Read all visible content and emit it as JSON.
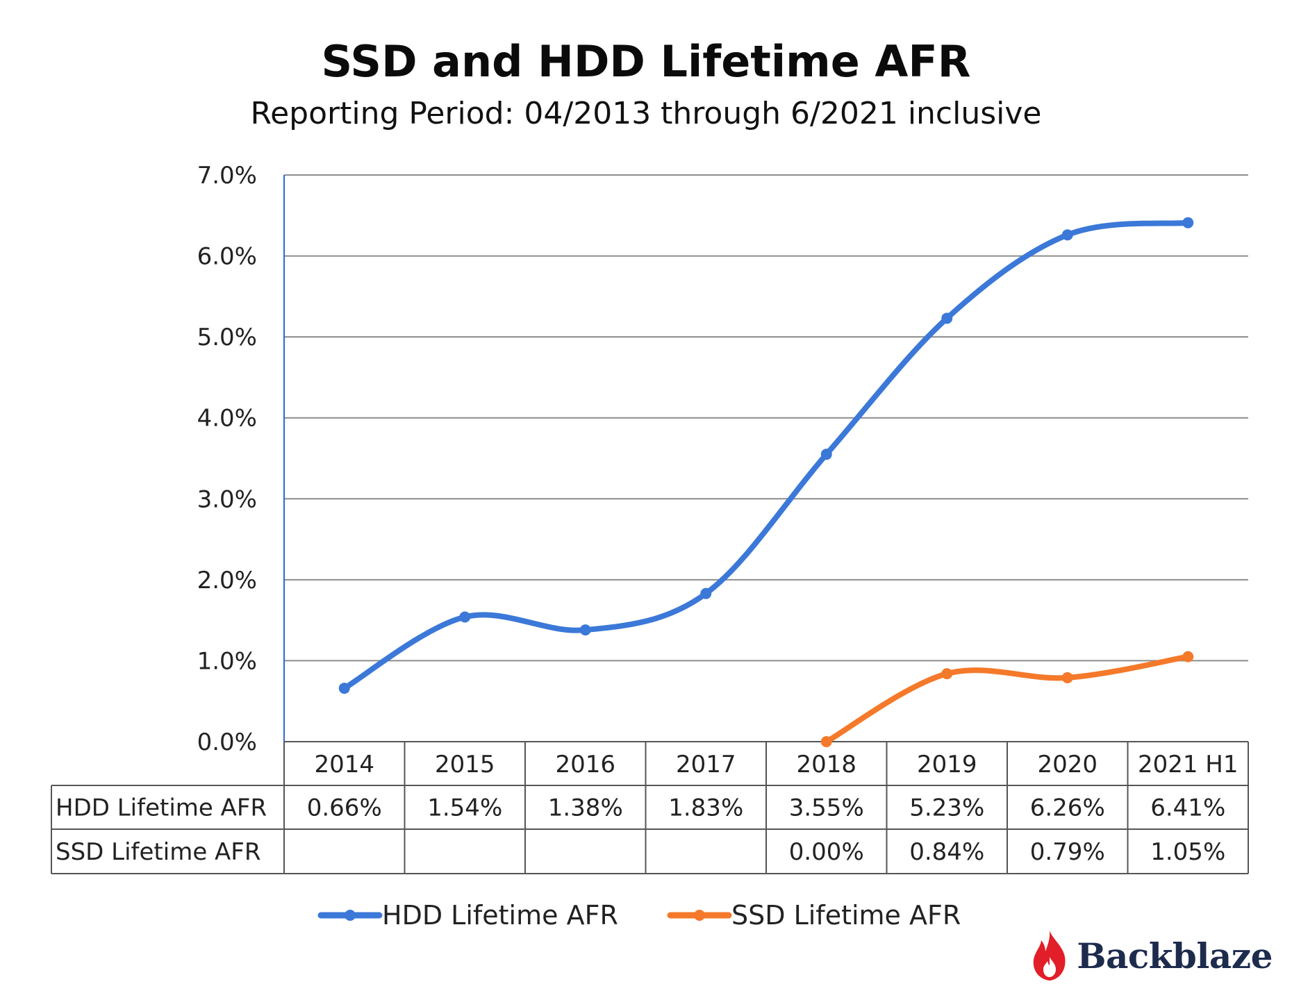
{
  "chart_data": {
    "type": "line",
    "title": "SSD and HDD Lifetime AFR",
    "subtitle": "Reporting Period: 04/2013 through 6/2021 inclusive",
    "categories": [
      "2014",
      "2015",
      "2016",
      "2017",
      "2018",
      "2019",
      "2020",
      "2021 H1"
    ],
    "y_ticks": [
      "0.0%",
      "1.0%",
      "2.0%",
      "3.0%",
      "4.0%",
      "5.0%",
      "6.0%",
      "7.0%"
    ],
    "ylim": [
      0,
      7
    ],
    "y_unit": "%",
    "grid": true,
    "legend": "bottom",
    "series": [
      {
        "name": "HDD Lifetime AFR",
        "color": "#3b78d8",
        "values": [
          0.66,
          1.54,
          1.38,
          1.83,
          3.55,
          5.23,
          6.26,
          6.41
        ],
        "labels": [
          "0.66%",
          "1.54%",
          "1.38%",
          "1.83%",
          "3.55%",
          "5.23%",
          "6.26%",
          "6.41%"
        ]
      },
      {
        "name": "SSD Lifetime AFR",
        "color": "#f5792a",
        "values": [
          null,
          null,
          null,
          null,
          0.0,
          0.84,
          0.79,
          1.05
        ],
        "labels": [
          "",
          "",
          "",
          "",
          "0.00%",
          "0.84%",
          "0.79%",
          "1.05%"
        ]
      }
    ]
  },
  "brand": {
    "name": "Backblaze",
    "logo_icon": "flame-icon",
    "logo_color": "#e21e29"
  }
}
